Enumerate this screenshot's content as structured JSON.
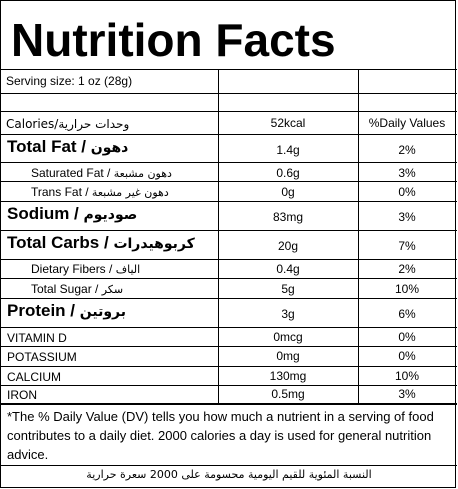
{
  "title": "Nutrition Facts",
  "serving": "Serving size: 1 oz (28g)",
  "header": {
    "label": "Calories/وحدات حرارية",
    "value": "52kcal",
    "dv": "%Daily Values"
  },
  "rows": [
    {
      "en": "Total Fat /",
      "ar": "دهون",
      "value": "1.4g",
      "dv": "2%"
    },
    {
      "en": "Saturated Fat /",
      "ar": "دهون مشبعة",
      "value": "0.6g",
      "dv": "3%"
    },
    {
      "en": "Trans Fat /",
      "ar": "دهون غير مشبعة",
      "value": "0g",
      "dv": "0%"
    },
    {
      "en": "Sodium /",
      "ar": "صوديوم",
      "value": "83mg",
      "dv": "3%"
    },
    {
      "en": "Total Carbs /",
      "ar": "كربوهيدرات",
      "value": "20g",
      "dv": "7%"
    },
    {
      "en": "Dietary Fibers /",
      "ar": "الياف",
      "value": "0.4g",
      "dv": "2%"
    },
    {
      "en": "Total Sugar /",
      "ar": "سكر",
      "value": "5g",
      "dv": "10%"
    },
    {
      "en": "Protein /",
      "ar": "بروتين",
      "value": "3g",
      "dv": "6%"
    },
    {
      "en": "VITAMIN D",
      "ar": "",
      "value": "0mcg",
      "dv": "0%"
    },
    {
      "en": "POTASSIUM",
      "ar": "",
      "value": "0mg",
      "dv": "0%"
    },
    {
      "en": "CALCIUM",
      "ar": "",
      "value": "130mg",
      "dv": "10%"
    },
    {
      "en": "IRON",
      "ar": "",
      "value": "0.5mg",
      "dv": "3%"
    }
  ],
  "note": "*The % Daily Value (DV) tells you how much a nutrient in a serving of food contributes to a daily diet. 2000 calories a day is used for general nutrition advice.",
  "note_ar": "النسبة المئوية للقيم اليومية محسومة على 2000 سعرة حرارية"
}
